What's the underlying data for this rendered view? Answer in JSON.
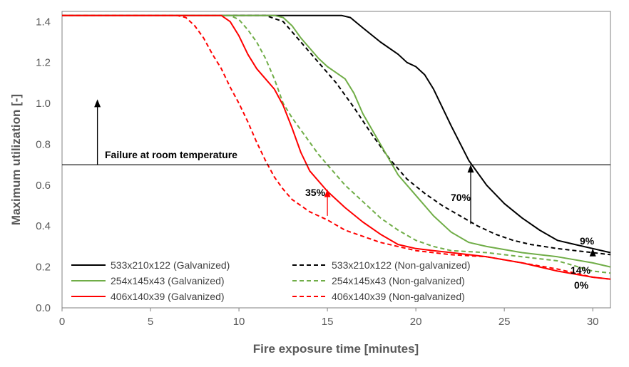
{
  "chart_data": {
    "type": "line",
    "title": "",
    "xlabel": "Fire exposure time [minutes]",
    "ylabel": "Maximum utilization [-]",
    "xlim": [
      0,
      31
    ],
    "ylim": [
      0,
      1.45
    ],
    "xticks": [
      "0",
      "5",
      "10",
      "15",
      "20",
      "25",
      "30"
    ],
    "yticks": [
      "0.0",
      "0.2",
      "0.4",
      "0.6",
      "0.8",
      "1.0",
      "1.2",
      "1.4"
    ],
    "grid": false,
    "legend_position": "bottom",
    "reference_line": {
      "y": 0.7,
      "label": "Failure at room temperature"
    },
    "series": [
      {
        "name": "533x210x122 (Galvanized)",
        "color": "#000000",
        "dash": "solid",
        "x": [
          0,
          15.8,
          16.3,
          17,
          18,
          19,
          19.5,
          20,
          20.5,
          21,
          22,
          23,
          24,
          25,
          26,
          27,
          28,
          29,
          30,
          31
        ],
        "y": [
          1.43,
          1.43,
          1.42,
          1.37,
          1.3,
          1.24,
          1.2,
          1.18,
          1.14,
          1.07,
          0.89,
          0.72,
          0.6,
          0.51,
          0.44,
          0.38,
          0.33,
          0.31,
          0.29,
          0.27
        ]
      },
      {
        "name": "533x210x122 (Non-galvanized)",
        "color": "#000000",
        "dash": "dashed",
        "x": [
          0,
          11.5,
          12.5,
          13.5,
          14.5,
          15.5,
          16.5,
          17.5,
          18.5,
          19.5,
          20.5,
          21.5,
          22.5,
          23.5,
          24.5,
          25.5,
          26.5,
          28,
          30,
          31
        ],
        "y": [
          1.43,
          1.43,
          1.4,
          1.3,
          1.2,
          1.1,
          0.98,
          0.85,
          0.73,
          0.63,
          0.56,
          0.5,
          0.45,
          0.4,
          0.36,
          0.33,
          0.31,
          0.29,
          0.27,
          0.26
        ]
      },
      {
        "name": "254x145x43 (Galvanized)",
        "color": "#70ad47",
        "dash": "solid",
        "x": [
          0,
          12,
          12.5,
          13,
          13.5,
          14,
          14.5,
          15,
          15.5,
          16,
          16.5,
          17,
          18,
          19,
          20,
          21,
          22,
          23,
          24,
          26,
          28,
          30,
          31
        ],
        "y": [
          1.43,
          1.43,
          1.42,
          1.38,
          1.32,
          1.27,
          1.22,
          1.18,
          1.15,
          1.12,
          1.05,
          0.95,
          0.8,
          0.65,
          0.55,
          0.45,
          0.37,
          0.32,
          0.3,
          0.27,
          0.25,
          0.22,
          0.2
        ]
      },
      {
        "name": "254x145x43 (Non-galvanized)",
        "color": "#70ad47",
        "dash": "dashed",
        "x": [
          0,
          9.5,
          10,
          10.5,
          11,
          11.5,
          12,
          12.5,
          13,
          13.5,
          14,
          14.5,
          15,
          16,
          17,
          18,
          19,
          20,
          21,
          22,
          24,
          26,
          28,
          30,
          31
        ],
        "y": [
          1.43,
          1.43,
          1.41,
          1.36,
          1.3,
          1.22,
          1.12,
          1.0,
          0.93,
          0.87,
          0.81,
          0.75,
          0.7,
          0.6,
          0.52,
          0.44,
          0.38,
          0.33,
          0.3,
          0.28,
          0.27,
          0.25,
          0.23,
          0.18,
          0.17
        ]
      },
      {
        "name": "406x140x39 (Galvanized)",
        "color": "#ff0000",
        "dash": "solid",
        "x": [
          0,
          9,
          9.5,
          10,
          10.5,
          11,
          11.5,
          12,
          12.5,
          13,
          13.5,
          14,
          15,
          16,
          17,
          18,
          19,
          20,
          21,
          22,
          23,
          24,
          26,
          28,
          30,
          31
        ],
        "y": [
          1.43,
          1.43,
          1.4,
          1.33,
          1.24,
          1.17,
          1.12,
          1.07,
          0.99,
          0.88,
          0.76,
          0.67,
          0.57,
          0.49,
          0.42,
          0.36,
          0.31,
          0.29,
          0.28,
          0.27,
          0.26,
          0.25,
          0.22,
          0.18,
          0.15,
          0.14
        ]
      },
      {
        "name": "406x140x39 (Non-galvanized)",
        "color": "#ff0000",
        "dash": "dashed",
        "x": [
          0,
          6.5,
          7,
          7.5,
          8,
          8.5,
          9,
          9.5,
          10,
          10.5,
          11,
          11.5,
          12,
          12.5,
          13,
          14,
          15,
          16,
          17,
          18,
          20,
          22,
          24,
          26,
          28,
          30,
          31
        ],
        "y": [
          1.43,
          1.43,
          1.42,
          1.38,
          1.32,
          1.24,
          1.17,
          1.08,
          1.0,
          0.91,
          0.81,
          0.72,
          0.64,
          0.58,
          0.53,
          0.47,
          0.43,
          0.38,
          0.35,
          0.32,
          0.28,
          0.26,
          0.25,
          0.22,
          0.19,
          0.15,
          0.14
        ]
      }
    ],
    "annotations": [
      {
        "text": "35%",
        "color": "#ff0000",
        "arrow_x": 15,
        "arrow_from": 0.45,
        "arrow_to": 0.58
      },
      {
        "text": "70%",
        "color": "#000000",
        "arrow_x": 23.1,
        "arrow_from": 0.41,
        "arrow_to": 0.7
      },
      {
        "text": "9%",
        "color": "#000000",
        "arrow_x": 30,
        "arrow_from": 0.26,
        "arrow_to": 0.29
      },
      {
        "text": "14%",
        "color": "#000000"
      },
      {
        "text": "0%",
        "color": "#000000"
      },
      {
        "text": "",
        "color": "#000000",
        "arrow_x": 2,
        "arrow_from": 0.7,
        "arrow_to": 1.02
      }
    ]
  }
}
